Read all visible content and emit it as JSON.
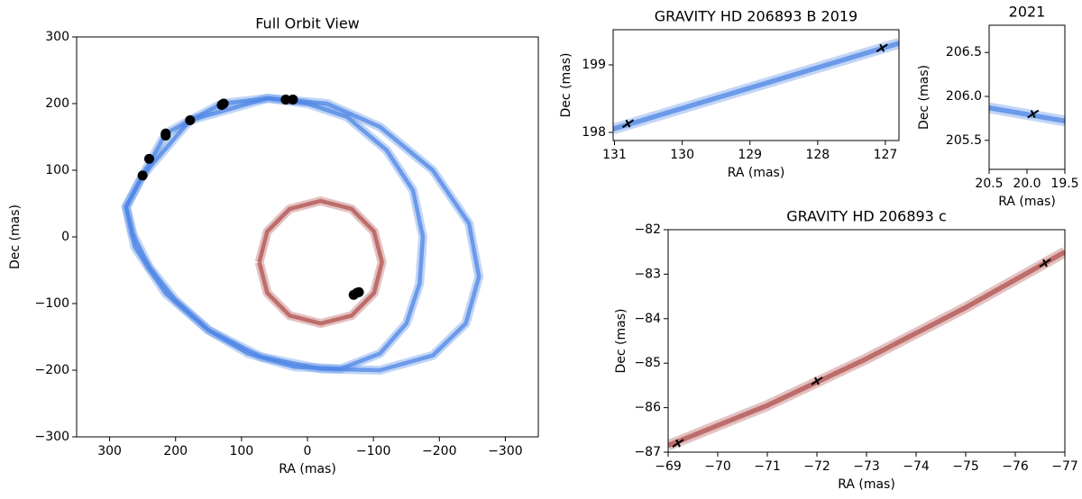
{
  "chart_data": [
    {
      "type": "scatter",
      "title": "Full Orbit View",
      "xlabel": "RA (mas)",
      "ylabel": "Dec (mas)",
      "xlim": [
        350,
        -350
      ],
      "ylim": [
        -300,
        300
      ],
      "xticks": [
        300,
        200,
        100,
        0,
        {
          "value": -100,
          "label": "−100"
        },
        {
          "value": -200,
          "label": "−200"
        },
        {
          "value": -300,
          "label": "−300"
        }
      ],
      "yticks": [
        {
          "value": -300,
          "label": "−300"
        },
        {
          "value": -200,
          "label": "−200"
        },
        {
          "value": -100,
          "label": "−100"
        },
        0,
        100,
        200,
        300
      ],
      "series": [
        {
          "kind": "band",
          "color": "#4d86e6",
          "x": [
            250,
            215,
            178,
            130,
            60,
            0,
            -60,
            -120,
            -160,
            -175,
            -170,
            -150,
            -110,
            -50,
            20,
            90,
            150,
            200,
            240,
            265,
            275,
            250
          ],
          "y": [
            92,
            155,
            175,
            200,
            208,
            200,
            180,
            130,
            70,
            0,
            -70,
            -130,
            -175,
            -198,
            -195,
            -175,
            -140,
            -95,
            -45,
            5,
            45,
            92
          ]
        },
        {
          "kind": "band",
          "color": "#4d86e6",
          "x": [
            250,
            178,
            60,
            -30,
            -110,
            -190,
            -245,
            -260,
            -240,
            -190,
            -110,
            -20,
            70,
            150,
            215,
            262,
            275,
            250
          ],
          "y": [
            92,
            175,
            208,
            200,
            165,
            100,
            20,
            -60,
            -130,
            -178,
            -200,
            -198,
            -180,
            -140,
            -85,
            -15,
            45,
            92
          ]
        },
        {
          "kind": "band",
          "color": "#b0504d",
          "x": [
            73,
            61,
            27,
            -20,
            -67,
            -101,
            -113,
            -101,
            -67,
            -20,
            27,
            61,
            73
          ],
          "y": [
            -38,
            8,
            42,
            54,
            42,
            8,
            -38,
            -84,
            -118,
            -130,
            -118,
            -84,
            -38
          ]
        },
        {
          "kind": "points",
          "color": "#000000",
          "x": [
            250,
            240,
            215,
            215,
            178,
            130,
            127,
            33,
            22,
            -70,
            -75,
            -78
          ],
          "y": [
            92,
            117,
            152,
            155,
            175,
            198,
            200,
            206,
            206,
            -87,
            -84,
            -83
          ]
        }
      ]
    },
    {
      "type": "scatter",
      "title": "GRAVITY HD 206893 B 2019",
      "xlabel": "RA (mas)",
      "ylabel": "Dec (mas)",
      "xlim": [
        131.02,
        126.8
      ],
      "ylim": [
        197.88,
        199.52
      ],
      "xticks": [
        131,
        130,
        129,
        128,
        127
      ],
      "yticks": [
        198,
        199
      ],
      "series": [
        {
          "kind": "band",
          "color": "#4d86e6",
          "x": [
            131.02,
            126.8
          ],
          "y": [
            198.05,
            199.32
          ]
        },
        {
          "kind": "points",
          "color": "#000000",
          "x": [
            130.8,
            127.05
          ],
          "y": [
            198.13,
            199.25
          ]
        }
      ]
    },
    {
      "type": "scatter",
      "title": "2021",
      "xlabel": "RA (mas)",
      "ylabel": "Dec (mas)",
      "xlim": [
        20.5,
        19.5
      ],
      "ylim": [
        205.17,
        206.81
      ],
      "xticks": [
        20.5,
        {
          "value": 20,
          "label": "20.0"
        },
        19.5
      ],
      "yticks": [
        205.5,
        {
          "value": 206,
          "label": "206.0"
        },
        206.5
      ],
      "series": [
        {
          "kind": "band",
          "color": "#4d86e6",
          "x": [
            20.5,
            19.5
          ],
          "y": [
            205.87,
            205.72
          ]
        },
        {
          "kind": "points",
          "color": "#000000",
          "x": [
            19.92
          ],
          "y": [
            205.8
          ]
        }
      ]
    },
    {
      "type": "scatter",
      "title": "GRAVITY HD 206893 c",
      "xlabel": "RA (mas)",
      "ylabel": "Dec (mas)",
      "xlim": [
        -69,
        -77
      ],
      "ylim": [
        -87,
        -82
      ],
      "xticks": [
        {
          "value": -69,
          "label": "−69"
        },
        {
          "value": -70,
          "label": "−70"
        },
        {
          "value": -71,
          "label": "−71"
        },
        {
          "value": -72,
          "label": "−72"
        },
        {
          "value": -73,
          "label": "−73"
        },
        {
          "value": -74,
          "label": "−74"
        },
        {
          "value": -75,
          "label": "−75"
        },
        {
          "value": -76,
          "label": "−76"
        },
        {
          "value": -77,
          "label": "−77"
        }
      ],
      "yticks": [
        {
          "value": -87,
          "label": "−87"
        },
        {
          "value": -86,
          "label": "−86"
        },
        {
          "value": -85,
          "label": "−85"
        },
        {
          "value": -84,
          "label": "−84"
        },
        {
          "value": -83,
          "label": "−83"
        },
        {
          "value": -82,
          "label": "−82"
        }
      ],
      "series": [
        {
          "kind": "band",
          "color": "#b0504d",
          "x": [
            -69,
            -71,
            -73,
            -75,
            -77
          ],
          "y": [
            -86.85,
            -85.95,
            -84.9,
            -83.75,
            -82.5
          ]
        },
        {
          "kind": "points",
          "color": "#000000",
          "x": [
            -69.2,
            -72,
            -76.6
          ],
          "y": [
            -86.8,
            -85.4,
            -82.75
          ]
        }
      ]
    }
  ]
}
